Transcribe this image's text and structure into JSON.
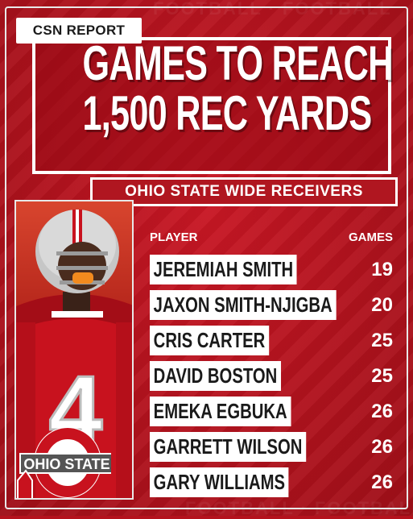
{
  "badge": "CSN REPORT",
  "headline": {
    "line1": "GAMES TO REACH",
    "line2": "1,500 REC YARDS"
  },
  "subtitle": "OHIO STATE WIDE RECEIVERS",
  "columns": {
    "player": "PLAYER",
    "games": "GAMES"
  },
  "players": [
    {
      "name": "JEREMIAH SMITH",
      "games": "19"
    },
    {
      "name": "JAXON SMITH-NJIGBA",
      "games": "20"
    },
    {
      "name": "CRIS CARTER",
      "games": "25"
    },
    {
      "name": "DAVID BOSTON",
      "games": "25"
    },
    {
      "name": "EMEKA EGBUKA",
      "games": "26"
    },
    {
      "name": "GARRETT WILSON",
      "games": "26"
    },
    {
      "name": "GARY WILLIAMS",
      "games": "26"
    }
  ],
  "photo": {
    "jersey_number": "4",
    "logo_text": "OHIO STATE"
  },
  "colors": {
    "scarlet": "#b4121d",
    "white": "#ffffff",
    "gray": "#bcbcbc"
  }
}
